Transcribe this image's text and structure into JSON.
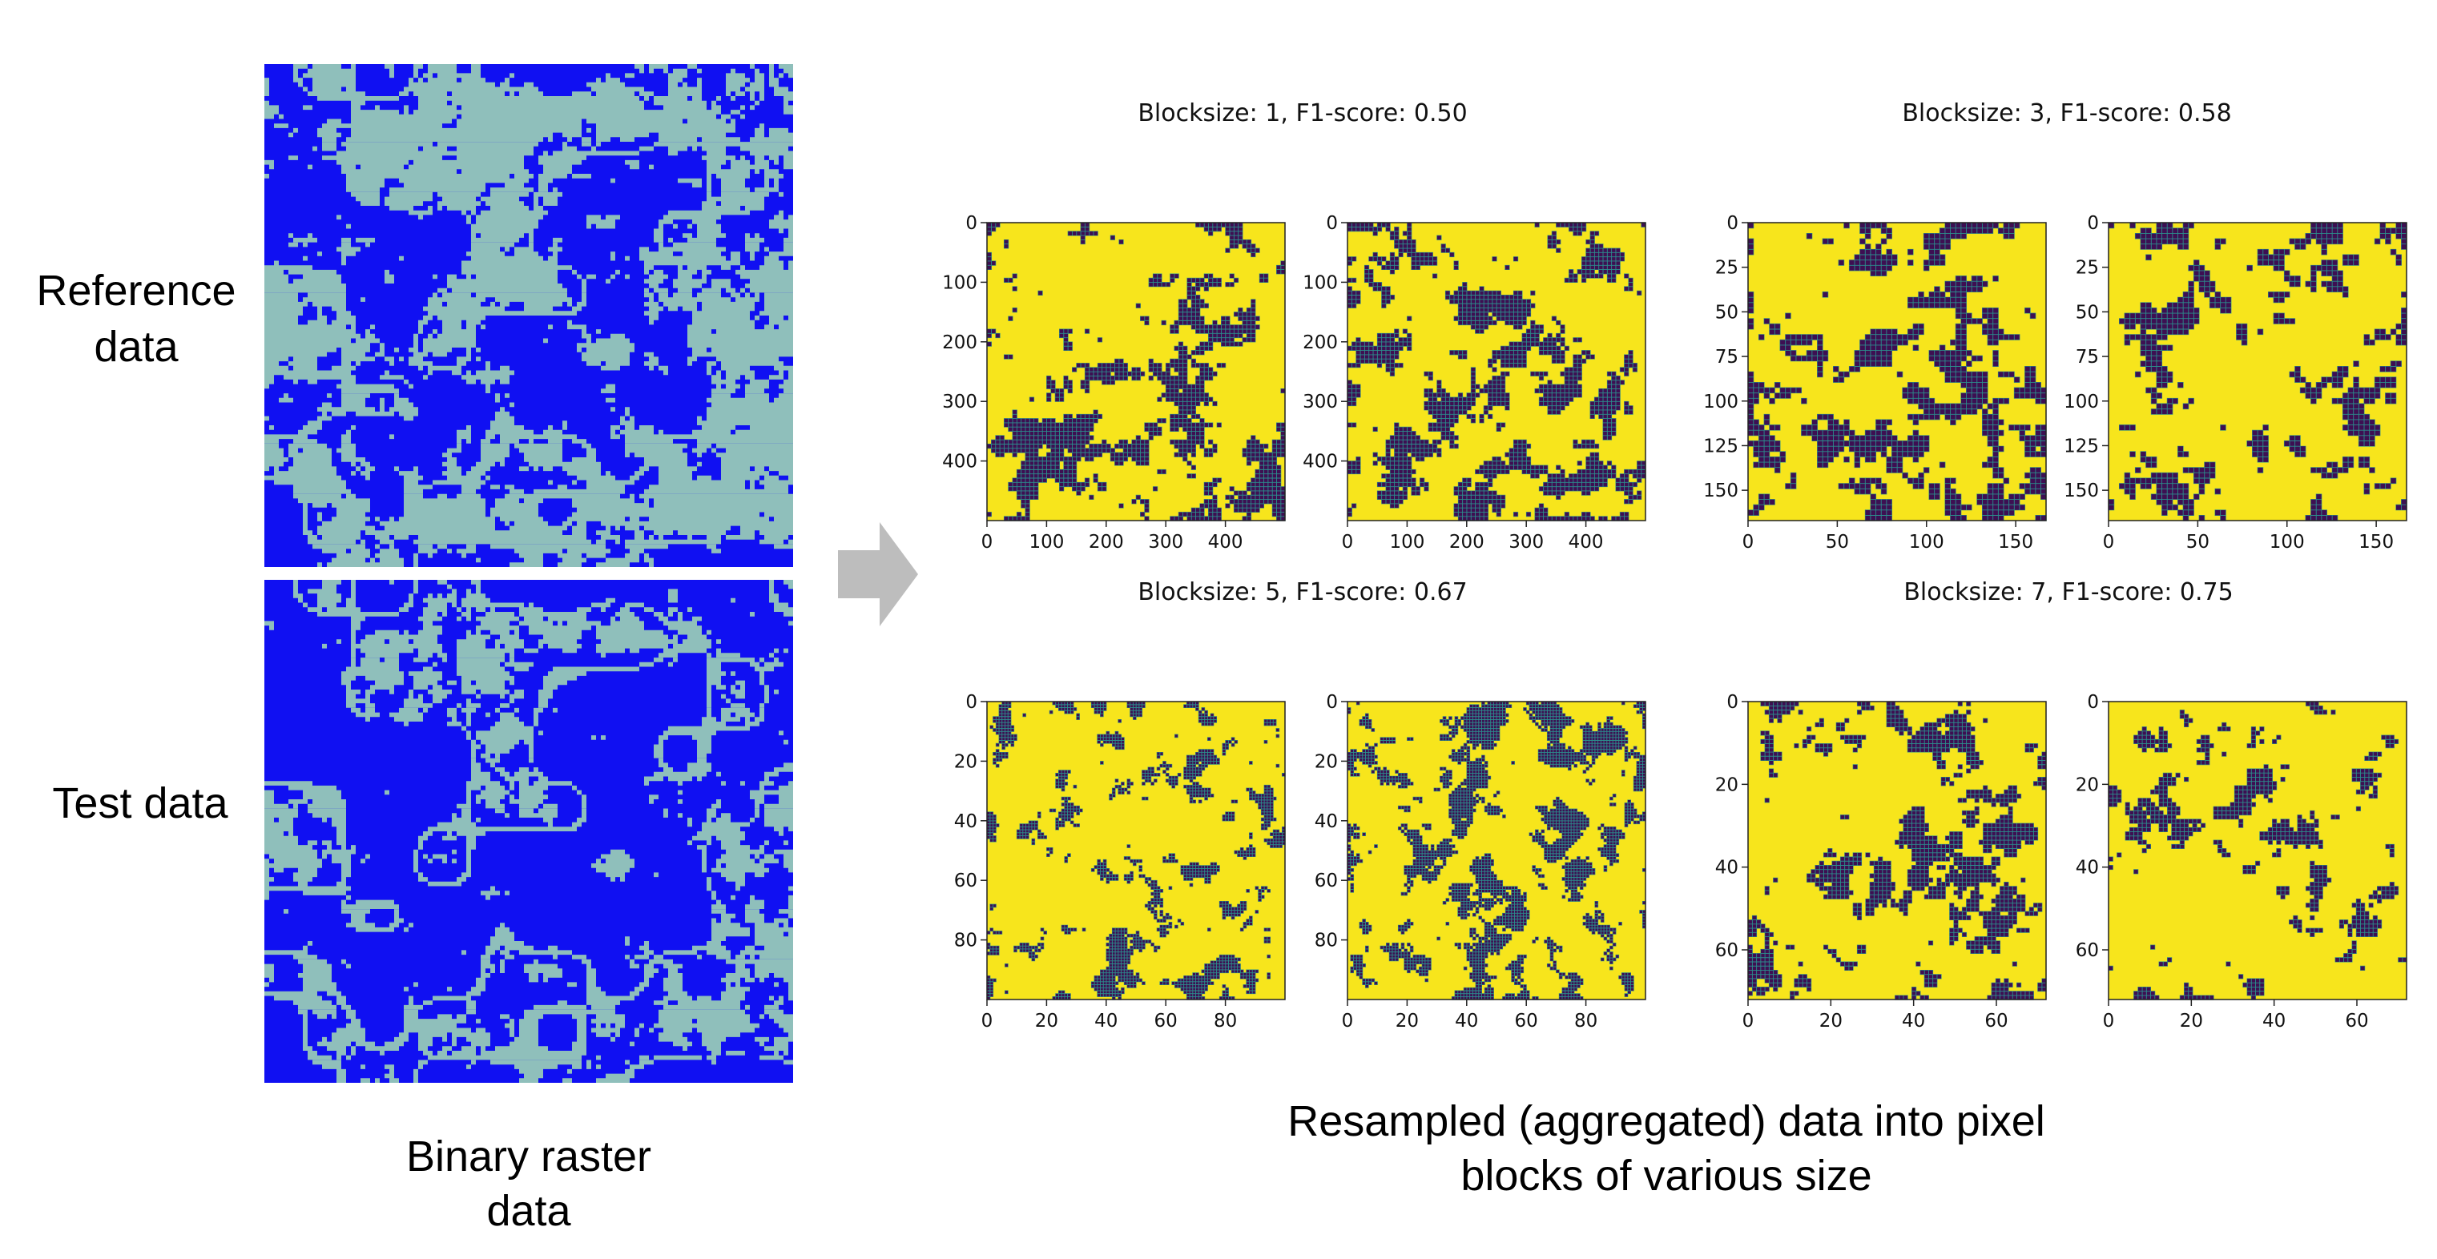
{
  "left": {
    "reference_label": [
      "Reference",
      "data"
    ],
    "test_label": "Test data",
    "caption": [
      "Binary raster",
      "data"
    ],
    "colors": {
      "foreground": "#1010f2",
      "background": "#8fbfbb"
    }
  },
  "right": {
    "caption": [
      "Resampled (aggregated) data into pixel",
      "blocks of various size"
    ],
    "colors": {
      "high": "#f7e51c",
      "low": "#3d0f52",
      "edge": "#2b8e8c"
    },
    "groups": [
      {
        "title": "Blocksize: 1, F1-score: 0.50",
        "grid": 70,
        "axis_max": 500,
        "xticks": [
          "0",
          "100",
          "200",
          "300",
          "400"
        ],
        "yticks": [
          "0",
          "100",
          "200",
          "300",
          "400"
        ],
        "tick_values": [
          0,
          100,
          200,
          300,
          400
        ]
      },
      {
        "title": "Blocksize: 3, F1-score: 0.58",
        "grid": 56,
        "axis_max": 167,
        "xticks": [
          "0",
          "50",
          "100",
          "150"
        ],
        "yticks": [
          "0",
          "25",
          "50",
          "75",
          "100",
          "125",
          "150"
        ],
        "xtick_values": [
          0,
          50,
          100,
          150
        ],
        "ytick_values": [
          0,
          25,
          50,
          75,
          100,
          125,
          150
        ]
      },
      {
        "title": "Blocksize: 5, F1-score: 0.67",
        "grid": 100,
        "axis_max": 100,
        "xticks": [
          "0",
          "20",
          "40",
          "60",
          "80"
        ],
        "yticks": [
          "0",
          "20",
          "40",
          "60",
          "80"
        ],
        "tick_values": [
          0,
          20,
          40,
          60,
          80
        ]
      },
      {
        "title": "Blocksize: 7, F1-score: 0.75",
        "grid": 71,
        "axis_max": 72,
        "xticks": [
          "0",
          "20",
          "40",
          "60"
        ],
        "yticks": [
          "0",
          "20",
          "40",
          "60"
        ],
        "tick_values": [
          0,
          20,
          40,
          60
        ]
      }
    ]
  }
}
